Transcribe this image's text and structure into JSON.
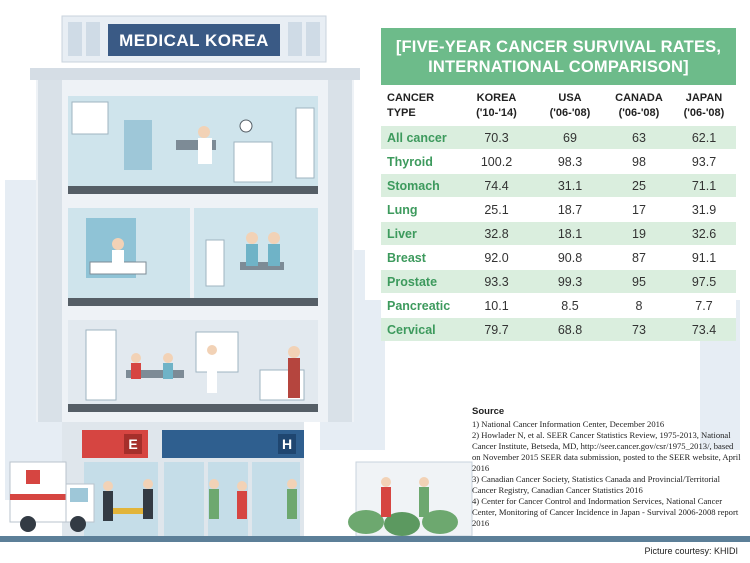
{
  "sign": {
    "hospital_name": "MEDICAL KOREA",
    "emergency_letter": "E",
    "hospital_letter": "H"
  },
  "chart_data": {
    "type": "table",
    "title_line1": "[FIVE-YEAR CANCER SURVIVAL RATES,",
    "title_line2": "INTERNATIONAL COMPARISON]",
    "columns": [
      {
        "name": "CANCER TYPE",
        "period": ""
      },
      {
        "name": "KOREA",
        "period": "('10-'14)"
      },
      {
        "name": "USA",
        "period": "('06-'08)"
      },
      {
        "name": "CANADA",
        "period": "('06-'08)"
      },
      {
        "name": "JAPAN",
        "period": "('06-'08)"
      }
    ],
    "rows": [
      {
        "cancer": "All cancer",
        "korea": "70.3",
        "usa": "69",
        "canada": "63",
        "japan": "62.1"
      },
      {
        "cancer": "Thyroid",
        "korea": "100.2",
        "usa": "98.3",
        "canada": "98",
        "japan": "93.7"
      },
      {
        "cancer": "Stomach",
        "korea": "74.4",
        "usa": "31.1",
        "canada": "25",
        "japan": "71.1"
      },
      {
        "cancer": "Lung",
        "korea": "25.1",
        "usa": "18.7",
        "canada": "17",
        "japan": "31.9"
      },
      {
        "cancer": "Liver",
        "korea": "32.8",
        "usa": "18.1",
        "canada": "19",
        "japan": "32.6"
      },
      {
        "cancer": "Breast",
        "korea": "92.0",
        "usa": "90.8",
        "canada": "87",
        "japan": "91.1"
      },
      {
        "cancer": "Prostate",
        "korea": "93.3",
        "usa": "99.3",
        "canada": "95",
        "japan": "97.5"
      },
      {
        "cancer": "Pancreatic",
        "korea": "10.1",
        "usa": "8.5",
        "canada": "8",
        "japan": "7.7"
      },
      {
        "cancer": "Cervical",
        "korea": "79.7",
        "usa": "68.8",
        "canada": "73",
        "japan": "73.4"
      }
    ]
  },
  "source": {
    "title": "Source",
    "items": [
      "1) National Cancer Information Center, December 2016",
      "2) Howlader N, et al. SEER Cancer Statistics Review, 1975-2013, National Cancer Institute, Betseda, MD, http://seer.cancer.gov/csr/1975_2013/, based on November 2015 SEER data submission, posted to the SEER website, April 2016",
      "3) Canadian Cancer Society, Statistics Canada and Provincial/Territorial Cancer Registry, Canadian Cancer Statistics 2016",
      "4) Center for Cancer Control and Indormation Services, National Cancer Center, Monitoring of Cancer Incidence in Japan - Survival 2006-2008 report 2016"
    ]
  },
  "credit": "Picture courtesy: KHIDI",
  "colors": {
    "accent_green": "#6dbb8a",
    "row_band": "#daeede",
    "type_text": "#3d9a5d",
    "emergency_red": "#d64541",
    "hospital_blue": "#2f5f8f",
    "sign_navy": "#3a5a85"
  }
}
